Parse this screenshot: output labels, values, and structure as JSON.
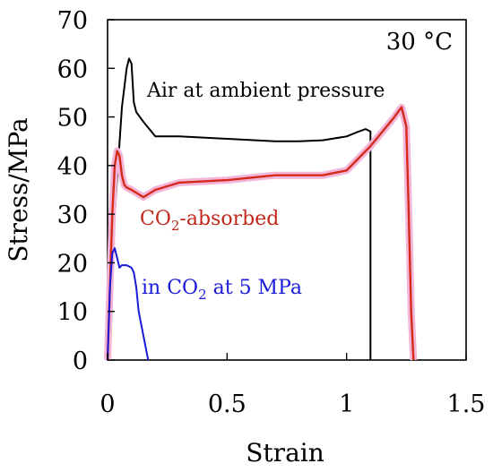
{
  "chart_data": {
    "type": "line",
    "xlabel": "Strain",
    "ylabel": "Stress/MPa",
    "xlim": [
      0,
      1.5
    ],
    "ylim": [
      0,
      70
    ],
    "xticks": [
      0,
      0.5,
      1,
      1.5
    ],
    "xtick_labels": [
      "0",
      "0.5",
      "1",
      "1.5"
    ],
    "yticks": [
      0,
      10,
      20,
      30,
      40,
      50,
      60,
      70
    ],
    "ytick_labels": [
      "0",
      "10",
      "20",
      "30",
      "40",
      "50",
      "60",
      "70"
    ],
    "temperature_label": "30 °C",
    "series": [
      {
        "color": "#000000",
        "x": [
          0,
          0.03,
          0.06,
          0.08,
          0.09,
          0.1,
          0.11,
          0.12,
          0.15,
          0.2,
          0.3,
          0.5,
          0.7,
          0.8,
          0.9,
          1.0,
          1.05,
          1.08,
          1.1,
          1.1
        ],
        "y": [
          0,
          30,
          52,
          60,
          62,
          61,
          53,
          51,
          49,
          46,
          46,
          45.5,
          45,
          45,
          45.2,
          46,
          47,
          47.5,
          47,
          0
        ]
      },
      {
        "color": "#d42a1a",
        "x": [
          0,
          0.02,
          0.03,
          0.04,
          0.05,
          0.06,
          0.07,
          0.08,
          0.1,
          0.15,
          0.2,
          0.3,
          0.5,
          0.7,
          0.9,
          1.0,
          1.1,
          1.15,
          1.2,
          1.23,
          1.25,
          1.26,
          1.27,
          1.28
        ],
        "y": [
          0,
          30,
          40,
          43,
          42,
          38,
          36,
          35.5,
          35,
          33.5,
          35,
          36.5,
          37,
          38,
          38,
          39,
          44,
          47,
          50,
          52,
          48,
          30,
          10,
          0
        ]
      },
      {
        "color": "#1a1ad9",
        "x": [
          0,
          0.01,
          0.02,
          0.03,
          0.04,
          0.05,
          0.06,
          0.08,
          0.1,
          0.11,
          0.12,
          0.13,
          0.15,
          0.17
        ],
        "y": [
          0,
          15,
          22,
          23,
          21,
          19,
          19.5,
          19.5,
          19,
          18,
          15,
          10,
          5,
          0
        ]
      }
    ],
    "annotations": {
      "air": "Air at ambient pressure",
      "co2_absorbed": {
        "pre": "CO",
        "sub": "2",
        "post": "-absorbed"
      },
      "in_co2": {
        "pre": "in CO",
        "sub": "2",
        "post": " at 5 MPa"
      }
    }
  }
}
